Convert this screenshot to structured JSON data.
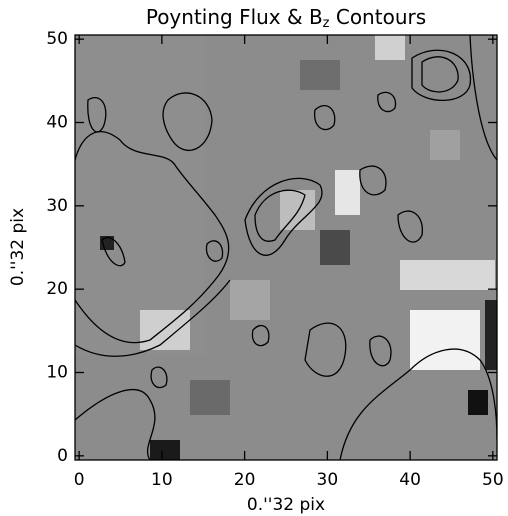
{
  "chart_data": {
    "type": "image",
    "title": {
      "text": "Poynting Flux & B",
      "subscript": "z",
      "suffix": " Contours"
    },
    "x_label": "0.''32 pix",
    "y_label": "0.''32 pix",
    "xlim": [
      -0.5,
      50.5
    ],
    "ylim": [
      -0.5,
      50.5
    ],
    "xticks": [
      0,
      10,
      20,
      30,
      40,
      50
    ],
    "yticks": [
      0,
      10,
      20,
      30,
      40,
      50
    ]
  }
}
